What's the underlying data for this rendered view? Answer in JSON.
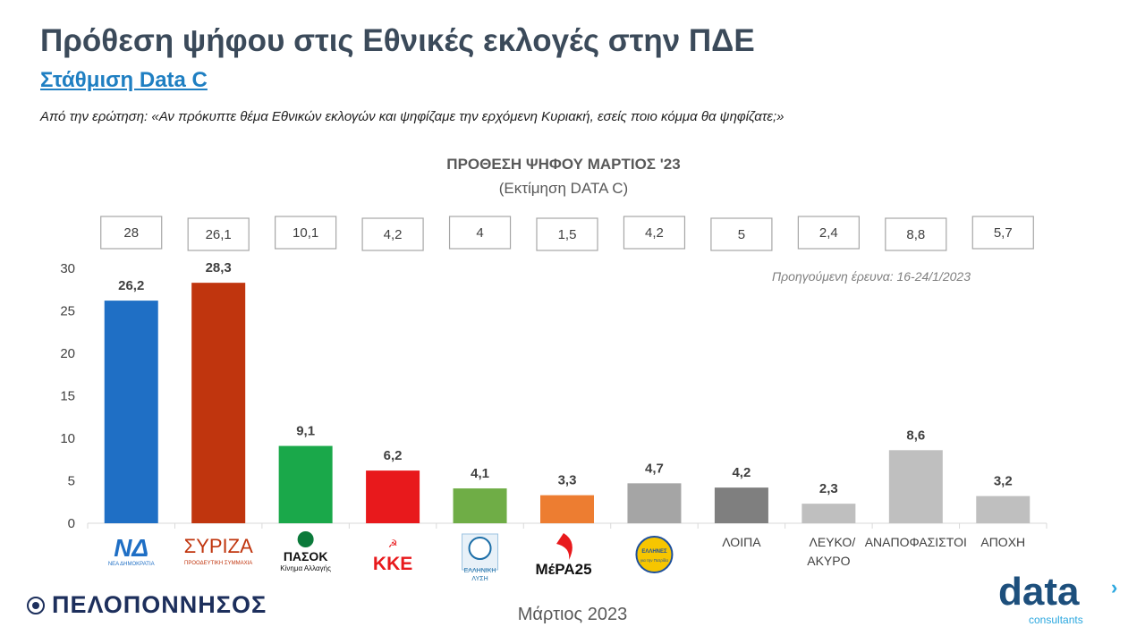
{
  "header": {
    "title": "Πρόθεση ψήφου στις Εθνικές εκλογές στην ΠΔΕ",
    "subtitle_link": "Στάθμιση Data C",
    "question": "Από την ερώτηση: «Αν πρόκυπτε θέμα Εθνικών εκλογών και ψηφίζαμε την ερχόμενη Κυριακή, εσείς ποιο κόμμα θα ψηφίζατε;»"
  },
  "chart_data": {
    "type": "bar",
    "title": "ΠΡΟΘΕΣΗ ΨΗΦΟΥ  ΜΑΡΤΙΟΣ '23",
    "subtitle": "(Εκτίμηση DATA C)",
    "categories": [
      "Νέα Δημοκρατία",
      "ΣΥΡΙΖΑ",
      "ΠΑΣΟΚ",
      "ΚΚΕ",
      "Ελληνική Λύση",
      "ΜέΡΑ25",
      "Έλληνες",
      "ΛΟΙΠΑ",
      "ΛΕΥΚΟ/ ΑΚΥΡΟ",
      "ΑΝΑΠΟΦΑΣΙΣΤΟΙ",
      "ΑΠΟΧΗ"
    ],
    "category_labels": [
      "",
      "",
      "",
      "",
      "",
      "",
      "",
      "ΛΟΙΠΑ",
      "ΛΕΥΚΟ/ ΑΚΥΡΟ",
      "ΑΝΑΠΟΦΑΣΙΣΤΟΙ",
      "ΑΠΟΧΗ"
    ],
    "series": [
      {
        "values": [
          26.2,
          28.3,
          9.1,
          6.2,
          4.1,
          3.3,
          4.7,
          4.2,
          2.3,
          8.6,
          3.2
        ]
      }
    ],
    "value_labels": [
      "26,2",
      "28,3",
      "9,1",
      "6,2",
      "4,1",
      "3,3",
      "4,7",
      "4,2",
      "2,3",
      "8,6",
      "3,2"
    ],
    "previous_values": [
      28,
      26.1,
      10.1,
      4.2,
      4,
      1.5,
      4.2,
      5,
      2.4,
      8.8,
      5.7
    ],
    "previous_labels": [
      "28",
      "26,1",
      "10,1",
      "4,2",
      "4",
      "1,5",
      "4,2",
      "5",
      "2,4",
      "8,8",
      "5,7"
    ],
    "previous_note": "Προηγούμενη έρευνα: 16-24/1/2023",
    "colors": [
      "#1f6fc5",
      "#c0350e",
      "#1aa84a",
      "#e8191c",
      "#6fad46",
      "#ed7d31",
      "#a5a5a5",
      "#7f7f7f",
      "#bfbfbf",
      "#bfbfbf",
      "#bfbfbf"
    ],
    "yticks": [
      "0",
      "5",
      "10",
      "15",
      "20",
      "25",
      "30"
    ],
    "ylim": [
      0,
      30
    ],
    "grid": false,
    "logos": [
      {
        "icon": "nd-logo-icon",
        "text": "ΝΔ",
        "sub": "ΝΕΑ ΔΗΜΟΚΡΑΤΙΑ",
        "color": "#1f6fc5"
      },
      {
        "icon": "syriza-logo-icon",
        "text": "ΣΥΡΙΖΑ",
        "sub": "ΠΡΟΟΔΕΥΤΙΚΗ ΣΥΜΜΑΧΙΑ",
        "color": "#c0350e"
      },
      {
        "icon": "pasok-logo-icon",
        "text": "ΠΑΣΟΚ",
        "sub": "Κίνημα Αλλαγής",
        "color": "#0b7a3a"
      },
      {
        "icon": "kke-logo-icon",
        "text": "ΚΚΕ",
        "sub": "",
        "color": "#e8191c"
      },
      {
        "icon": "elliniki-lysi-logo-icon",
        "text": "ΕΛΛΗΝΙΚΗ",
        "sub": "ΛΥΣΗ",
        "color": "#1d6fa8"
      },
      {
        "icon": "mera25-logo-icon",
        "text": "ΜέΡΑ25",
        "sub": "",
        "color": "#111111"
      },
      {
        "icon": "ellines-logo-icon",
        "text": "ΕΛΛΗΝΕΣ",
        "sub": "για την Πατρίδα",
        "color": "#1d4f9c"
      }
    ]
  },
  "footer": {
    "region": "ΠΕΛΟΠΟΝΝΗΣΟΣ",
    "date": "Μάρτιος 2023",
    "brand": "data",
    "brand_sub": "consultants"
  }
}
